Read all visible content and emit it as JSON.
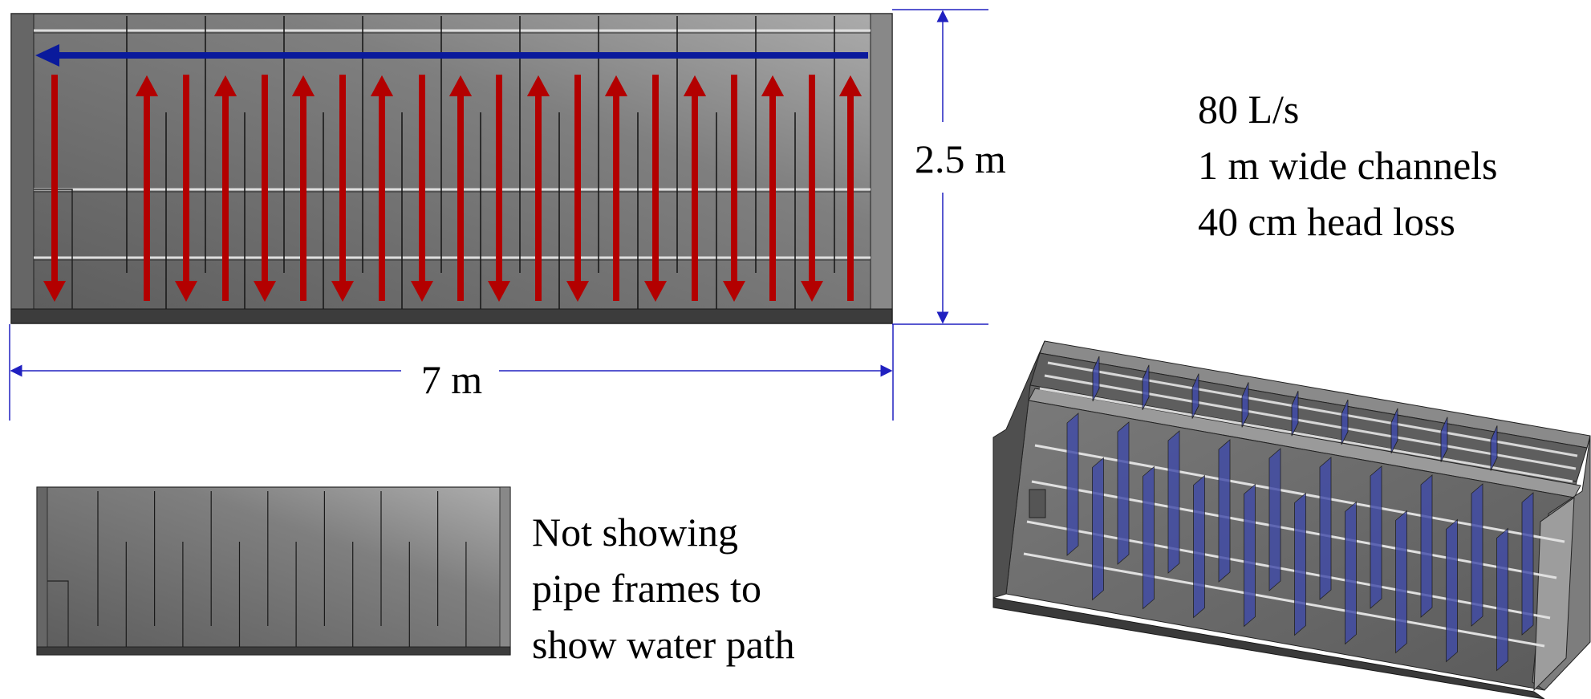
{
  "dimensions": {
    "height_label": "2.5 m",
    "width_label": "7 m"
  },
  "specs": [
    "80 L/s",
    "1 m wide channels",
    "40 cm head loss"
  ],
  "note_lines": [
    "Not showing",
    "pipe frames to",
    "show water path"
  ],
  "colors": {
    "flow_arrow": "#b30000",
    "return_arrow": "#0a1a9c",
    "dimension_line": "#2020c0",
    "tank_shade_dark": "#5a5a5a",
    "tank_shade_light": "#a8a8a8",
    "baffle_plate": "#3f4aa8"
  },
  "icons": {
    "flow": "arrow-icon",
    "tank": "flocculator-tank-icon"
  }
}
